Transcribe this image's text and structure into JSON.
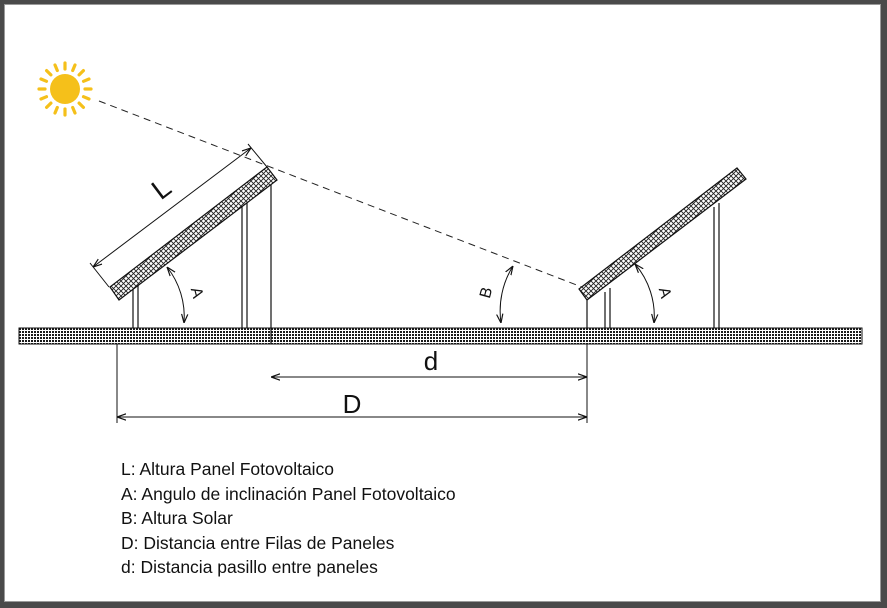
{
  "diagram": {
    "labels": {
      "L": "L",
      "A_left": "A",
      "A_right": "A",
      "B": "B",
      "d": "d",
      "D": "D"
    },
    "legend": [
      "L: Altura Panel Fotovoltaico",
      "A: Angulo de inclinación Panel Fotovoltaico",
      "B: Altura Solar",
      "D: Distancia entre Filas de Paneles",
      "d: Distancia pasillo entre paneles"
    ],
    "colors": {
      "sun": "#f5c01a",
      "line": "#111111",
      "frame": "#4a4a4a"
    },
    "icons": [
      "sun-icon"
    ]
  }
}
